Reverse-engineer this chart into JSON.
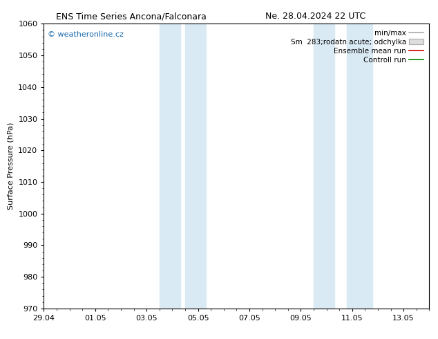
{
  "title_left": "ENS Time Series Ancona/Falconara",
  "title_right": "Ne. 28.04.2024 22 UTC",
  "ylabel": "Surface Pressure (hPa)",
  "ylim": [
    970,
    1060
  ],
  "yticks": [
    970,
    980,
    990,
    1000,
    1010,
    1020,
    1030,
    1040,
    1050,
    1060
  ],
  "xlim": [
    0,
    15
  ],
  "x_tick_labels": [
    "29.04",
    "01.05",
    "03.05",
    "05.05",
    "07.05",
    "09.05",
    "11.05",
    "13.05"
  ],
  "x_tick_positions": [
    0,
    2,
    4,
    6,
    8,
    10,
    12,
    14
  ],
  "shaded_regions": [
    {
      "x_start": 4.5,
      "x_end": 5.3,
      "color": "#daeaf5"
    },
    {
      "x_start": 5.5,
      "x_end": 6.3,
      "color": "#daeaf5"
    },
    {
      "x_start": 10.5,
      "x_end": 11.3,
      "color": "#daeaf5"
    },
    {
      "x_start": 11.8,
      "x_end": 12.8,
      "color": "#daeaf5"
    }
  ],
  "legend_entries": [
    {
      "label": "min/max",
      "type": "line",
      "color": "#aaaaaa",
      "linewidth": 1.2
    },
    {
      "label": "Sm  283;rodatn acute; odchylka",
      "type": "box",
      "facecolor": "#dddddd",
      "edgecolor": "#aaaaaa"
    },
    {
      "label": "Ensemble mean run",
      "type": "line",
      "color": "#cc0000",
      "linewidth": 1.2
    },
    {
      "label": "Controll run",
      "type": "line",
      "color": "#008800",
      "linewidth": 1.2
    }
  ],
  "watermark": "© weatheronline.cz",
  "watermark_color": "#1a6aad",
  "background_color": "#ffffff",
  "plot_bg_color": "#ffffff",
  "border_color": "#000000",
  "title_fontsize": 9,
  "ylabel_fontsize": 8,
  "tick_fontsize": 8,
  "legend_fontsize": 7.5,
  "watermark_fontsize": 8
}
